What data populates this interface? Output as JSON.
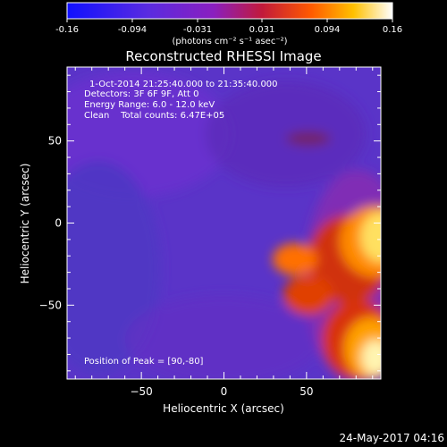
{
  "colorbar": {
    "tick_labels": [
      "-0.16",
      "-0.094",
      "-0.031",
      "0.031",
      "0.094",
      "0.16"
    ],
    "unit_label": "(photons cm⁻² s⁻¹ asec⁻²)"
  },
  "title": "Reconstructed RHESSI Image",
  "info": {
    "line1": "1-Oct-2014 21:25:40.000 to 21:35:40.000",
    "line2": "Detectors: 3F 6F 9F, Att 0",
    "line3": "Energy Range: 6.0 - 12.0 keV",
    "line4": "Clean    Total counts: 6.47E+05"
  },
  "peak_label": "Position of Peak = [90,-80]",
  "footer_timestamp": "24-May-2017 04:16",
  "chart_data": {
    "type": "heatmap",
    "title": "Reconstructed RHESSI Image",
    "xlabel": "Heliocentric X (arcsec)",
    "ylabel": "Heliocentric Y (arcsec)",
    "xlim": [
      -95,
      95
    ],
    "ylim": [
      -95,
      95
    ],
    "x_ticks": [
      -50,
      0,
      50
    ],
    "y_ticks": [
      50,
      0,
      -50
    ],
    "colorbar_range": [
      -0.16,
      0.16
    ],
    "peak_position": [
      90,
      -80
    ],
    "colors": {
      "cmap_low": "#0000ff",
      "cmap_mid": "#7b2cbf",
      "cmap_high": "#ffffff",
      "background": "#000000"
    }
  }
}
